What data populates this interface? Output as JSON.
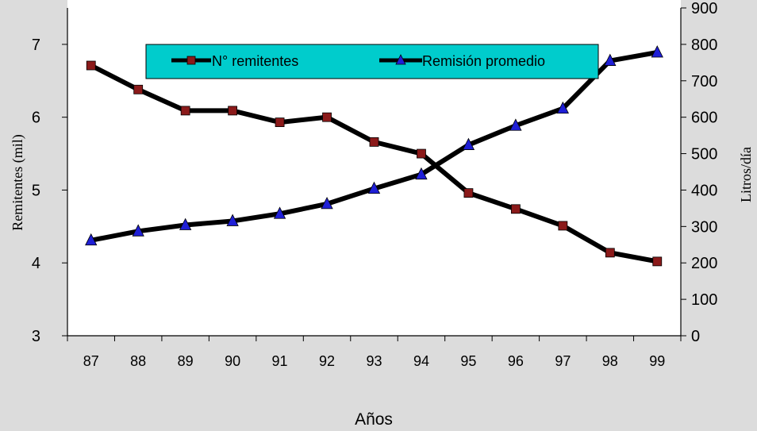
{
  "chart_data": {
    "type": "line",
    "categories": [
      "87",
      "88",
      "89",
      "90",
      "91",
      "92",
      "93",
      "94",
      "95",
      "96",
      "97",
      "98",
      "99"
    ],
    "xlabel": "Años",
    "ylabel_left": "Remitentes (mil)",
    "ylabel_right": "Litros/día",
    "ylim_left": [
      3,
      7.5
    ],
    "ylim_right": [
      0,
      900
    ],
    "yticks_left": [
      "3",
      "4",
      "5",
      "6",
      "7"
    ],
    "yticks_right": [
      "0",
      "100",
      "200",
      "300",
      "400",
      "500",
      "600",
      "700",
      "800",
      "900"
    ],
    "grid": false,
    "legend_position": "top-center",
    "series": [
      {
        "name": "N° remitentes",
        "axis": "left",
        "marker": "square",
        "marker_color": "#8b1a1a",
        "line_color": "#000000",
        "values": [
          6.71,
          6.38,
          6.09,
          6.09,
          5.93,
          6.0,
          5.66,
          5.5,
          4.96,
          4.74,
          4.51,
          4.14,
          4.02
        ]
      },
      {
        "name": "Remisión promedio",
        "axis": "right",
        "marker": "triangle",
        "marker_color": "#1f1fd6",
        "line_color": "#000000",
        "values": [
          262,
          287,
          304,
          315,
          335,
          362,
          404,
          443,
          524,
          577,
          624,
          755,
          778
        ]
      }
    ],
    "colors": {
      "plot_background": "#ffffff",
      "page_background": "#dcdcdc",
      "legend_background": "#00cccc"
    }
  }
}
